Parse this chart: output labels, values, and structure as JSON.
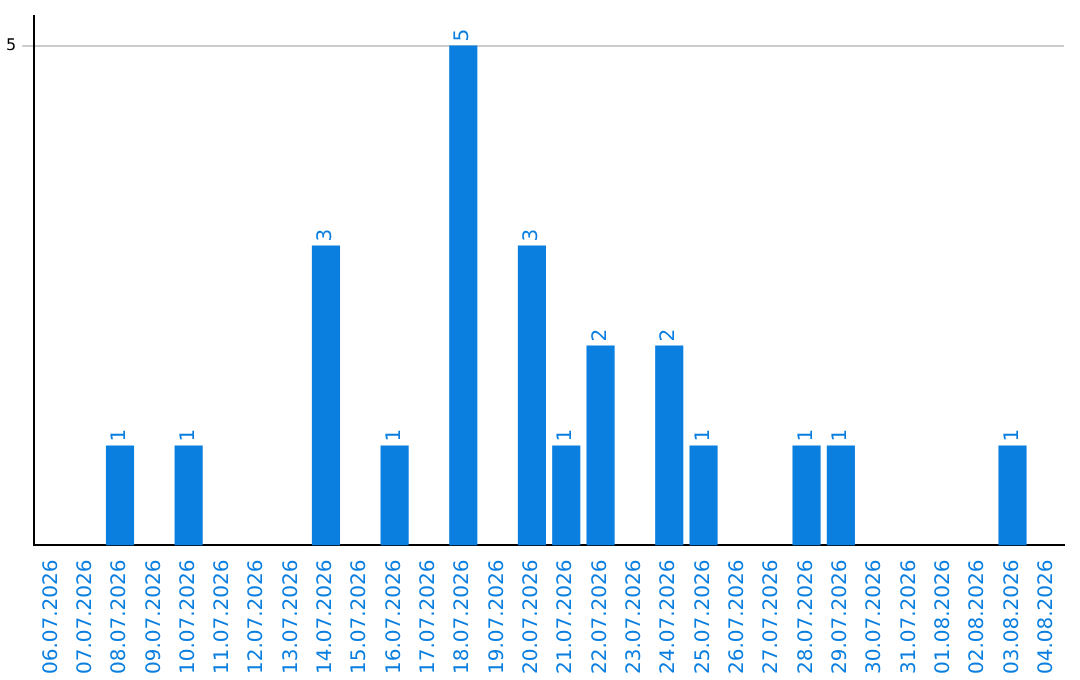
{
  "chart_data": {
    "type": "bar",
    "categories": [
      "06.07.2026",
      "07.07.2026",
      "08.07.2026",
      "09.07.2026",
      "10.07.2026",
      "11.07.2026",
      "12.07.2026",
      "13.07.2026",
      "14.07.2026",
      "15.07.2026",
      "16.07.2026",
      "17.07.2026",
      "18.07.2026",
      "19.07.2026",
      "20.07.2026",
      "21.07.2026",
      "22.07.2026",
      "23.07.2026",
      "24.07.2026",
      "25.07.2026",
      "26.07.2026",
      "27.07.2026",
      "28.07.2026",
      "29.07.2026",
      "30.07.2026",
      "31.07.2026",
      "01.08.2026",
      "02.08.2026",
      "03.08.2026",
      "04.08.2026"
    ],
    "values": [
      0,
      0,
      1,
      0,
      1,
      0,
      0,
      0,
      3,
      0,
      1,
      0,
      5,
      0,
      3,
      1,
      2,
      0,
      2,
      1,
      0,
      0,
      1,
      1,
      0,
      0,
      0,
      0,
      1,
      0
    ],
    "value_labels": [
      null,
      null,
      "1",
      null,
      "1",
      null,
      null,
      null,
      "3",
      null,
      "1",
      null,
      "5",
      null,
      "3",
      "1",
      "2",
      null,
      "2",
      "1",
      null,
      null,
      "1",
      "1",
      null,
      null,
      null,
      null,
      "1",
      null
    ],
    "color": "#0a7fe0",
    "ylim": [
      0,
      5.3
    ],
    "yticks": [
      5
    ],
    "grid": "y",
    "legend": false
  }
}
